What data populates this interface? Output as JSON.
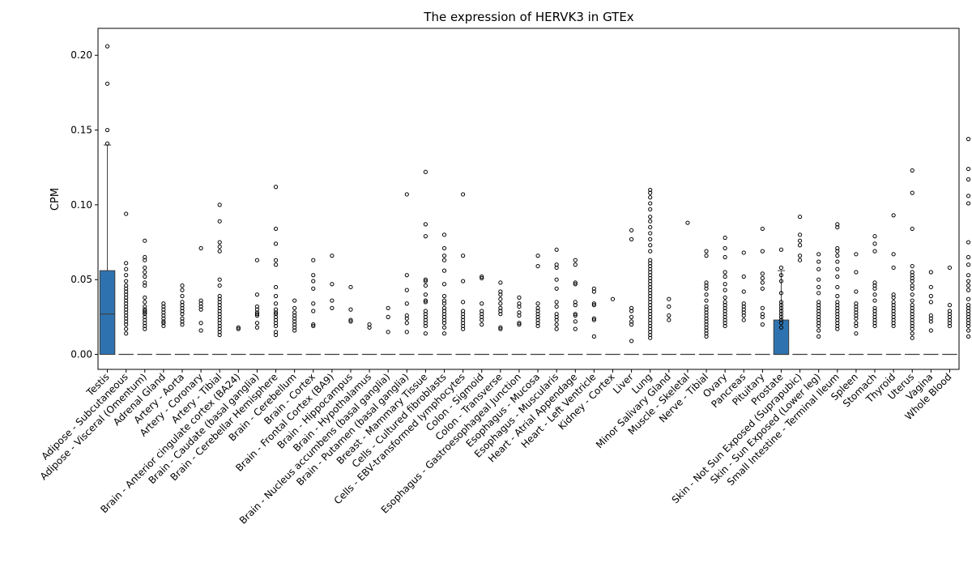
{
  "chart_data": {
    "type": "boxplot",
    "title": "The expression of HERVK3 in GTEx",
    "xlabel": "",
    "ylabel": "CPM",
    "ylim": [
      -0.01,
      0.218
    ],
    "yticks": [
      "0.00",
      "0.05",
      "0.10",
      "0.15",
      "0.20"
    ],
    "yticks_values": [
      0,
      0.05,
      0.1,
      0.15,
      0.2
    ],
    "grid": false,
    "legend": "none",
    "box_color": "#2e73b0",
    "categories": [
      "Testis",
      "Adipose - Subcutaneous",
      "Adipose - Visceral (Omentum)",
      "Adrenal Gland",
      "Artery - Aorta",
      "Artery - Coronary",
      "Artery - Tibial",
      "Brain - Anterior cingulate cortex (BA24)",
      "Brain - Caudate (basal ganglia)",
      "Brain - Cerebellar Hemisphere",
      "Brain - Cerebellum",
      "Brain - Cortex",
      "Brain - Frontal Cortex (BA9)",
      "Brain - Hippocampus",
      "Brain - Hypothalamus",
      "Brain - Nucleus accumbens (basal ganglia)",
      "Brain - Putamen (basal ganglia)",
      "Breast - Mammary Tissue",
      "Cells - Cultured fibroblasts",
      "Cells - EBV-transformed lymphocytes",
      "Colon - Sigmoid",
      "Colon - Transverse",
      "Esophagus - Gastroesophageal Junction",
      "Esophagus - Mucosa",
      "Esophagus - Muscularis",
      "Heart - Atrial Appendage",
      "Heart - Left Ventricle",
      "Kidney - Cortex",
      "Liver",
      "Lung",
      "Minor Salivary Gland",
      "Muscle - Skeletal",
      "Nerve - Tibial",
      "Ovary",
      "Pancreas",
      "Pituitary",
      "Prostate",
      "Skin - Not Sun Exposed (Suprapubic)",
      "Skin - Sun Exposed (Lower leg)",
      "Small Intestine - Terminal Ileum",
      "Spleen",
      "Stomach",
      "Thyroid",
      "Uterus",
      "Vagina",
      "Whole Blood"
    ],
    "boxes": [
      {
        "q1": 0,
        "median": 0.027,
        "q3": 0.056,
        "whisker_low": 0,
        "whisker_high": 0.14
      },
      {
        "q1": 0,
        "median": 0,
        "q3": 0,
        "whisker_low": 0,
        "whisker_high": 0
      },
      {
        "q1": 0,
        "median": 0,
        "q3": 0,
        "whisker_low": 0,
        "whisker_high": 0
      },
      {
        "q1": 0,
        "median": 0,
        "q3": 0,
        "whisker_low": 0,
        "whisker_high": 0
      },
      {
        "q1": 0,
        "median": 0,
        "q3": 0,
        "whisker_low": 0,
        "whisker_high": 0
      },
      {
        "q1": 0,
        "median": 0,
        "q3": 0,
        "whisker_low": 0,
        "whisker_high": 0
      },
      {
        "q1": 0,
        "median": 0,
        "q3": 0,
        "whisker_low": 0,
        "whisker_high": 0
      },
      {
        "q1": 0,
        "median": 0,
        "q3": 0,
        "whisker_low": 0,
        "whisker_high": 0
      },
      {
        "q1": 0,
        "median": 0,
        "q3": 0,
        "whisker_low": 0,
        "whisker_high": 0
      },
      {
        "q1": 0,
        "median": 0,
        "q3": 0,
        "whisker_low": 0,
        "whisker_high": 0
      },
      {
        "q1": 0,
        "median": 0,
        "q3": 0,
        "whisker_low": 0,
        "whisker_high": 0
      },
      {
        "q1": 0,
        "median": 0,
        "q3": 0,
        "whisker_low": 0,
        "whisker_high": 0
      },
      {
        "q1": 0,
        "median": 0,
        "q3": 0,
        "whisker_low": 0,
        "whisker_high": 0
      },
      {
        "q1": 0,
        "median": 0,
        "q3": 0,
        "whisker_low": 0,
        "whisker_high": 0
      },
      {
        "q1": 0,
        "median": 0,
        "q3": 0,
        "whisker_low": 0,
        "whisker_high": 0
      },
      {
        "q1": 0,
        "median": 0,
        "q3": 0,
        "whisker_low": 0,
        "whisker_high": 0
      },
      {
        "q1": 0,
        "median": 0,
        "q3": 0,
        "whisker_low": 0,
        "whisker_high": 0
      },
      {
        "q1": 0,
        "median": 0,
        "q3": 0,
        "whisker_low": 0,
        "whisker_high": 0
      },
      {
        "q1": 0,
        "median": 0,
        "q3": 0,
        "whisker_low": 0,
        "whisker_high": 0
      },
      {
        "q1": 0,
        "median": 0,
        "q3": 0,
        "whisker_low": 0,
        "whisker_high": 0
      },
      {
        "q1": 0,
        "median": 0,
        "q3": 0,
        "whisker_low": 0,
        "whisker_high": 0
      },
      {
        "q1": 0,
        "median": 0,
        "q3": 0,
        "whisker_low": 0,
        "whisker_high": 0
      },
      {
        "q1": 0,
        "median": 0,
        "q3": 0,
        "whisker_low": 0,
        "whisker_high": 0
      },
      {
        "q1": 0,
        "median": 0,
        "q3": 0,
        "whisker_low": 0,
        "whisker_high": 0
      },
      {
        "q1": 0,
        "median": 0,
        "q3": 0,
        "whisker_low": 0,
        "whisker_high": 0
      },
      {
        "q1": 0,
        "median": 0,
        "q3": 0,
        "whisker_low": 0,
        "whisker_high": 0
      },
      {
        "q1": 0,
        "median": 0,
        "q3": 0,
        "whisker_low": 0,
        "whisker_high": 0
      },
      {
        "q1": 0,
        "median": 0,
        "q3": 0,
        "whisker_low": 0,
        "whisker_high": 0
      },
      {
        "q1": 0,
        "median": 0,
        "q3": 0,
        "whisker_low": 0,
        "whisker_high": 0
      },
      {
        "q1": 0,
        "median": 0,
        "q3": 0,
        "whisker_low": 0,
        "whisker_high": 0
      },
      {
        "q1": 0,
        "median": 0,
        "q3": 0,
        "whisker_low": 0,
        "whisker_high": 0
      },
      {
        "q1": 0,
        "median": 0,
        "q3": 0,
        "whisker_low": 0,
        "whisker_high": 0
      },
      {
        "q1": 0,
        "median": 0,
        "q3": 0,
        "whisker_low": 0,
        "whisker_high": 0
      },
      {
        "q1": 0,
        "median": 0,
        "q3": 0,
        "whisker_low": 0,
        "whisker_high": 0
      },
      {
        "q1": 0,
        "median": 0,
        "q3": 0,
        "whisker_low": 0,
        "whisker_high": 0
      },
      {
        "q1": 0,
        "median": 0,
        "q3": 0,
        "whisker_low": 0,
        "whisker_high": 0
      },
      {
        "q1": 0,
        "median": 0,
        "q3": 0.023,
        "whisker_low": 0,
        "whisker_high": 0.056
      },
      {
        "q1": 0,
        "median": 0,
        "q3": 0,
        "whisker_low": 0,
        "whisker_high": 0
      },
      {
        "q1": 0,
        "median": 0,
        "q3": 0,
        "whisker_low": 0,
        "whisker_high": 0
      },
      {
        "q1": 0,
        "median": 0,
        "q3": 0,
        "whisker_low": 0,
        "whisker_high": 0
      },
      {
        "q1": 0,
        "median": 0,
        "q3": 0,
        "whisker_low": 0,
        "whisker_high": 0
      },
      {
        "q1": 0,
        "median": 0,
        "q3": 0,
        "whisker_low": 0,
        "whisker_high": 0
      },
      {
        "q1": 0,
        "median": 0,
        "q3": 0,
        "whisker_low": 0,
        "whisker_high": 0
      },
      {
        "q1": 0,
        "median": 0,
        "q3": 0,
        "whisker_low": 0,
        "whisker_high": 0
      },
      {
        "q1": 0,
        "median": 0,
        "q3": 0,
        "whisker_low": 0,
        "whisker_high": 0
      },
      {
        "q1": 0,
        "median": 0,
        "q3": 0,
        "whisker_low": 0,
        "whisker_high": 0
      }
    ],
    "outliers": [
      [
        0.206,
        0.181,
        0.15,
        0.141
      ],
      [
        0.094,
        0.061,
        0.057,
        0.053,
        0.049,
        0.046,
        0.044,
        0.042,
        0.04,
        0.038,
        0.036,
        0.034,
        0.032,
        0.03,
        0.028,
        0.026,
        0.024,
        0.022,
        0.02,
        0.017,
        0.014
      ],
      [
        0.076,
        0.065,
        0.063,
        0.058,
        0.055,
        0.052,
        0.048,
        0.046,
        0.038,
        0.035,
        0.032,
        0.03,
        0.029,
        0.028,
        0.027,
        0.025,
        0.023,
        0.021,
        0.019,
        0.017
      ],
      [
        0.034,
        0.032,
        0.03,
        0.028,
        0.026,
        0.024,
        0.022,
        0.021,
        0.019
      ],
      [
        0.046,
        0.043,
        0.039,
        0.035,
        0.033,
        0.031,
        0.029,
        0.027,
        0.024,
        0.022,
        0.02
      ],
      [
        0.071,
        0.036,
        0.034,
        0.032,
        0.03,
        0.021,
        0.016
      ],
      [
        0.1,
        0.089,
        0.075,
        0.072,
        0.069,
        0.05,
        0.046,
        0.039,
        0.037,
        0.035,
        0.033,
        0.031,
        0.029,
        0.027,
        0.025,
        0.023,
        0.021,
        0.019,
        0.017,
        0.015,
        0.013
      ],
      [
        0.018,
        0.017
      ],
      [
        0.063,
        0.04,
        0.032,
        0.03,
        0.028,
        0.027,
        0.026,
        0.021,
        0.018
      ],
      [
        0.112,
        0.084,
        0.074,
        0.063,
        0.06,
        0.045,
        0.039,
        0.034,
        0.03,
        0.028,
        0.027,
        0.025,
        0.023,
        0.021,
        0.019,
        0.015,
        0.013
      ],
      [
        0.036,
        0.031,
        0.028,
        0.026,
        0.024,
        0.022,
        0.02,
        0.018,
        0.016
      ],
      [
        0.063,
        0.053,
        0.049,
        0.044,
        0.034,
        0.029,
        0.02,
        0.019
      ],
      [
        0.066,
        0.047,
        0.036,
        0.031
      ],
      [
        0.045,
        0.03,
        0.023,
        0.022
      ],
      [
        0.02,
        0.018
      ],
      [
        0.031,
        0.025,
        0.015
      ],
      [
        0.107,
        0.053,
        0.043,
        0.034,
        0.026,
        0.024,
        0.021,
        0.015
      ],
      [
        0.122,
        0.087,
        0.079,
        0.05,
        0.049,
        0.046,
        0.04,
        0.036,
        0.035,
        0.029,
        0.027,
        0.025,
        0.023,
        0.021,
        0.019,
        0.014
      ],
      [
        0.08,
        0.071,
        0.066,
        0.063,
        0.056,
        0.047,
        0.039,
        0.036,
        0.034,
        0.031,
        0.029,
        0.027,
        0.025,
        0.023,
        0.021,
        0.018,
        0.014
      ],
      [
        0.107,
        0.066,
        0.049,
        0.035,
        0.029,
        0.027,
        0.025,
        0.023,
        0.021,
        0.019,
        0.017
      ],
      [
        0.052,
        0.051,
        0.034,
        0.029,
        0.027,
        0.025,
        0.023,
        0.02
      ],
      [
        0.048,
        0.042,
        0.04,
        0.037,
        0.034,
        0.031,
        0.029,
        0.027,
        0.018,
        0.017
      ],
      [
        0.038,
        0.034,
        0.032,
        0.028,
        0.026,
        0.021,
        0.02
      ],
      [
        0.066,
        0.059,
        0.034,
        0.031,
        0.029,
        0.027,
        0.025,
        0.023,
        0.021,
        0.019
      ],
      [
        0.07,
        0.06,
        0.058,
        0.05,
        0.044,
        0.035,
        0.032,
        0.027,
        0.025,
        0.023,
        0.02,
        0.017
      ],
      [
        0.063,
        0.06,
        0.048,
        0.047,
        0.035,
        0.033,
        0.027,
        0.026,
        0.022,
        0.017
      ],
      [
        0.044,
        0.042,
        0.034,
        0.033,
        0.024,
        0.023,
        0.012
      ],
      [
        0.037
      ],
      [
        0.083,
        0.077,
        0.031,
        0.029,
        0.025,
        0.022,
        0.02,
        0.009
      ],
      [
        0.11,
        0.108,
        0.105,
        0.101,
        0.097,
        0.092,
        0.089,
        0.085,
        0.081,
        0.077,
        0.073,
        0.069,
        0.063,
        0.061,
        0.059,
        0.057,
        0.055,
        0.053,
        0.051,
        0.049,
        0.047,
        0.045,
        0.043,
        0.041,
        0.039,
        0.037,
        0.035,
        0.033,
        0.031,
        0.029,
        0.027,
        0.025,
        0.023,
        0.021,
        0.019,
        0.017,
        0.015,
        0.013,
        0.011
      ],
      [
        0.037,
        0.032,
        0.026,
        0.023
      ],
      [
        0.088
      ],
      [
        0.069,
        0.066,
        0.048,
        0.046,
        0.044,
        0.04,
        0.036,
        0.032,
        0.03,
        0.028,
        0.026,
        0.024,
        0.022,
        0.02,
        0.018,
        0.016,
        0.014,
        0.012
      ],
      [
        0.078,
        0.071,
        0.065,
        0.055,
        0.052,
        0.047,
        0.043,
        0.038,
        0.035,
        0.033,
        0.031,
        0.029,
        0.027,
        0.025,
        0.023,
        0.021,
        0.019
      ],
      [
        0.068,
        0.052,
        0.042,
        0.034,
        0.032,
        0.03,
        0.028,
        0.026,
        0.023
      ],
      [
        0.084,
        0.069,
        0.054,
        0.051,
        0.048,
        0.044,
        0.031,
        0.027,
        0.025,
        0.02
      ],
      [
        0.07,
        0.058,
        0.053,
        0.049,
        0.041,
        0.035,
        0.033,
        0.031,
        0.029,
        0.027,
        0.025,
        0.023,
        0.021,
        0.018
      ],
      [
        0.092,
        0.08,
        0.076,
        0.073,
        0.066,
        0.063
      ],
      [
        0.067,
        0.062,
        0.057,
        0.05,
        0.045,
        0.041,
        0.035,
        0.033,
        0.031,
        0.029,
        0.027,
        0.025,
        0.023,
        0.021,
        0.019,
        0.016,
        0.012
      ],
      [
        0.087,
        0.085,
        0.071,
        0.069,
        0.066,
        0.062,
        0.057,
        0.052,
        0.045,
        0.039,
        0.035,
        0.033,
        0.031,
        0.029,
        0.027,
        0.025,
        0.023,
        0.021,
        0.019,
        0.017
      ],
      [
        0.067,
        0.055,
        0.042,
        0.034,
        0.032,
        0.03,
        0.028,
        0.026,
        0.024,
        0.021,
        0.019,
        0.014
      ],
      [
        0.079,
        0.074,
        0.069,
        0.048,
        0.046,
        0.044,
        0.04,
        0.036,
        0.031,
        0.029,
        0.027,
        0.025,
        0.023,
        0.021,
        0.019
      ],
      [
        0.093,
        0.067,
        0.058,
        0.04,
        0.038,
        0.035,
        0.033,
        0.031,
        0.029,
        0.027,
        0.025,
        0.023,
        0.021,
        0.019
      ],
      [
        0.123,
        0.108,
        0.084,
        0.059,
        0.055,
        0.053,
        0.051,
        0.049,
        0.046,
        0.044,
        0.04,
        0.036,
        0.033,
        0.031,
        0.029,
        0.027,
        0.025,
        0.023,
        0.021,
        0.019,
        0.017,
        0.014,
        0.011
      ],
      [
        0.055,
        0.045,
        0.039,
        0.035,
        0.026,
        0.024,
        0.022,
        0.016
      ],
      [
        0.058,
        0.033,
        0.029,
        0.027,
        0.025,
        0.023,
        0.021,
        0.019
      ],
      [
        0.144,
        0.124,
        0.117,
        0.106,
        0.101,
        0.075,
        0.065,
        0.06,
        0.053,
        0.049,
        0.046,
        0.043,
        0.037,
        0.033,
        0.031,
        0.029,
        0.027,
        0.025,
        0.023,
        0.021,
        0.019,
        0.016,
        0.012
      ]
    ]
  }
}
